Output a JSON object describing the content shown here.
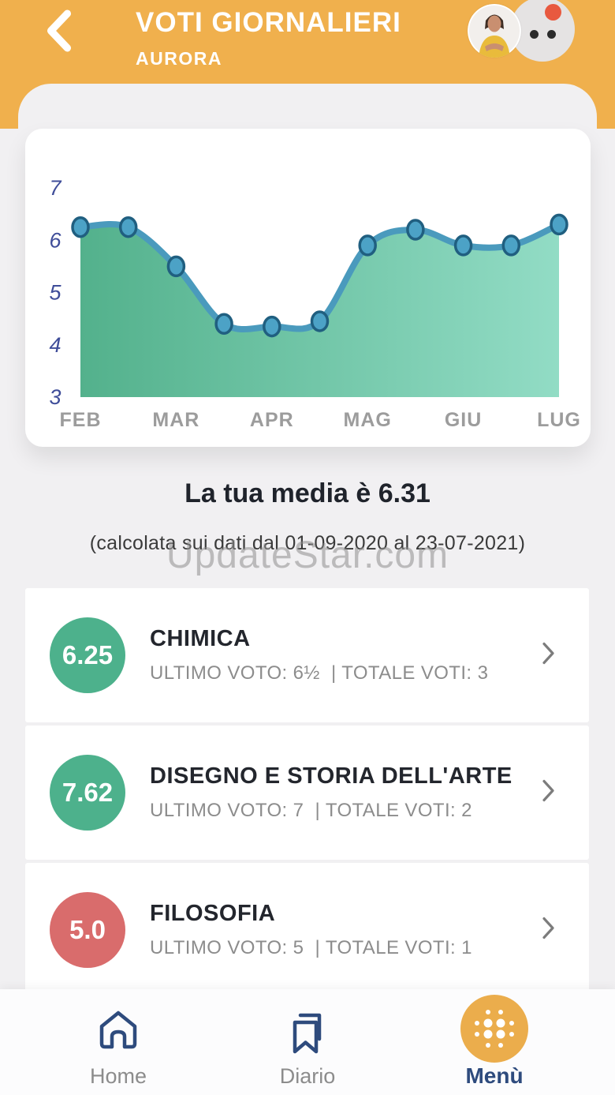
{
  "header": {
    "title": "VOTI GIORNALIERI",
    "subtitle": "AURORA",
    "bg_color": "#F0B04D"
  },
  "chart_data": {
    "type": "area",
    "title": "",
    "xlabel": "",
    "ylabel": "",
    "x_labels": [
      "FEB",
      "MAR",
      "APR",
      "MAG",
      "GIU",
      "LUG"
    ],
    "y_ticks": [
      7,
      6,
      5,
      4,
      3
    ],
    "ylim": [
      3,
      7.8
    ],
    "points_per_x_label": 2,
    "values": [
      6.25,
      6.25,
      5.5,
      4.4,
      4.35,
      4.45,
      5.9,
      6.2,
      5.9,
      5.9,
      6.3
    ],
    "grid": false,
    "legend": false,
    "colors": {
      "area_gradient": [
        "#53B18C",
        "#92DCC5"
      ],
      "line": "#4A9ABD",
      "dot_fill": "#4CA2C6",
      "dot_stroke": "#205F80",
      "y_tick": "#3F4D99",
      "x_label": "#9C9C9C"
    }
  },
  "summary": {
    "title": "La tua media è 6.31",
    "subtitle": "(calcolata sui dati dal 01-09-2020 al 23-07-2021)",
    "watermark": "UpdateStar.com"
  },
  "subjects": [
    {
      "average": "6.25",
      "name": "CHIMICA",
      "last_label": "ULTIMO VOTO:",
      "last_value": "6½",
      "total_label": "TOTALE VOTI:",
      "total_value": "3",
      "badge_color": "#4DB18C"
    },
    {
      "average": "7.62",
      "name": "DISEGNO E STORIA DELL'ARTE",
      "last_label": "ULTIMO VOTO:",
      "last_value": "7",
      "total_label": "TOTALE VOTI:",
      "total_value": "2",
      "badge_color": "#4DB18C"
    },
    {
      "average": "5.0",
      "name": "FILOSOFIA",
      "last_label": "ULTIMO VOTO:",
      "last_value": "5",
      "total_label": "TOTALE VOTI:",
      "total_value": "1",
      "badge_color": "#D96C6C"
    }
  ],
  "nav": {
    "items": [
      {
        "label": "Home",
        "icon": "home-icon",
        "active": false
      },
      {
        "label": "Diario",
        "icon": "bookmark-icon",
        "active": false
      },
      {
        "label": "Menù",
        "icon": "menu-dots-icon",
        "active": true
      }
    ],
    "accent_color": "#EBAD4C",
    "navy_color": "#2E4B7D"
  }
}
